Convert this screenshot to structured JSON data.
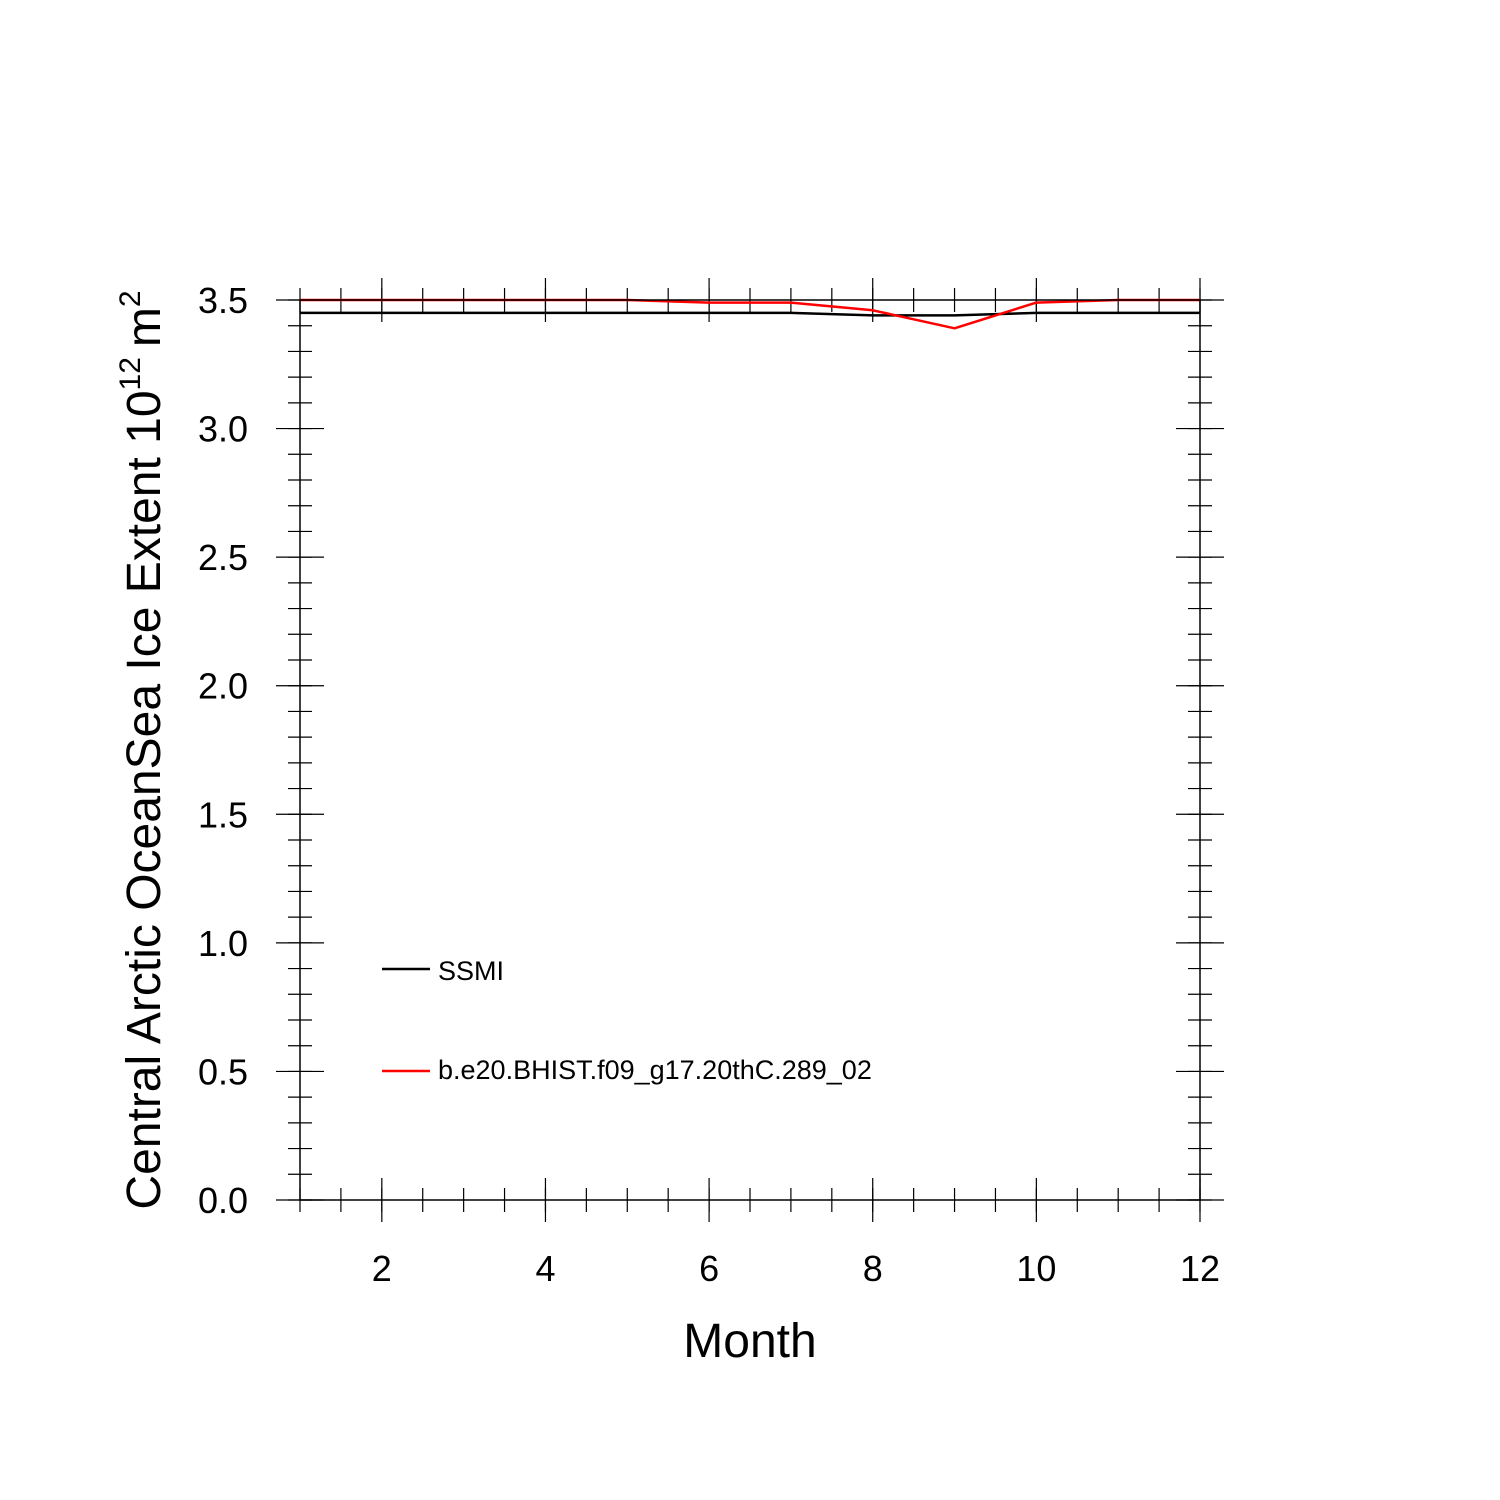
{
  "chart_data": {
    "type": "line",
    "title": "",
    "xlabel": "Month",
    "ylabel": "Central Arctic OceanSea Ice Extent 10",
    "ylabel_superscript": "12",
    "ylabel_unit": "m",
    "ylabel_unit_superscript": "2",
    "xlim": [
      1,
      12
    ],
    "ylim": [
      0,
      3.5
    ],
    "x_ticks": [
      2,
      4,
      6,
      8,
      10,
      12
    ],
    "x_tick_labels": [
      "2",
      "4",
      "6",
      "8",
      "10",
      "12"
    ],
    "y_ticks": [
      0,
      0.5,
      1,
      1.5,
      2,
      2.5,
      3,
      3.5
    ],
    "y_tick_labels": [
      "0.0",
      "0.5",
      "1.0",
      "1.5",
      "2.0",
      "2.5",
      "3.0",
      "3.5"
    ],
    "grid": false,
    "legend_position": "lower-left",
    "x": [
      1,
      2,
      3,
      4,
      5,
      6,
      7,
      8,
      9,
      10,
      11,
      12
    ],
    "series": [
      {
        "name": "SSMI",
        "color": "#000000",
        "values": [
          3.45,
          3.45,
          3.45,
          3.45,
          3.45,
          3.45,
          3.45,
          3.44,
          3.44,
          3.45,
          3.45,
          3.45
        ]
      },
      {
        "name": "b.e20.BHIST.f09_g17.20thC.289_02",
        "color": "#ff0000",
        "values": [
          3.5,
          3.5,
          3.5,
          3.5,
          3.5,
          3.49,
          3.49,
          3.46,
          3.39,
          3.49,
          3.5,
          3.5
        ]
      }
    ]
  }
}
